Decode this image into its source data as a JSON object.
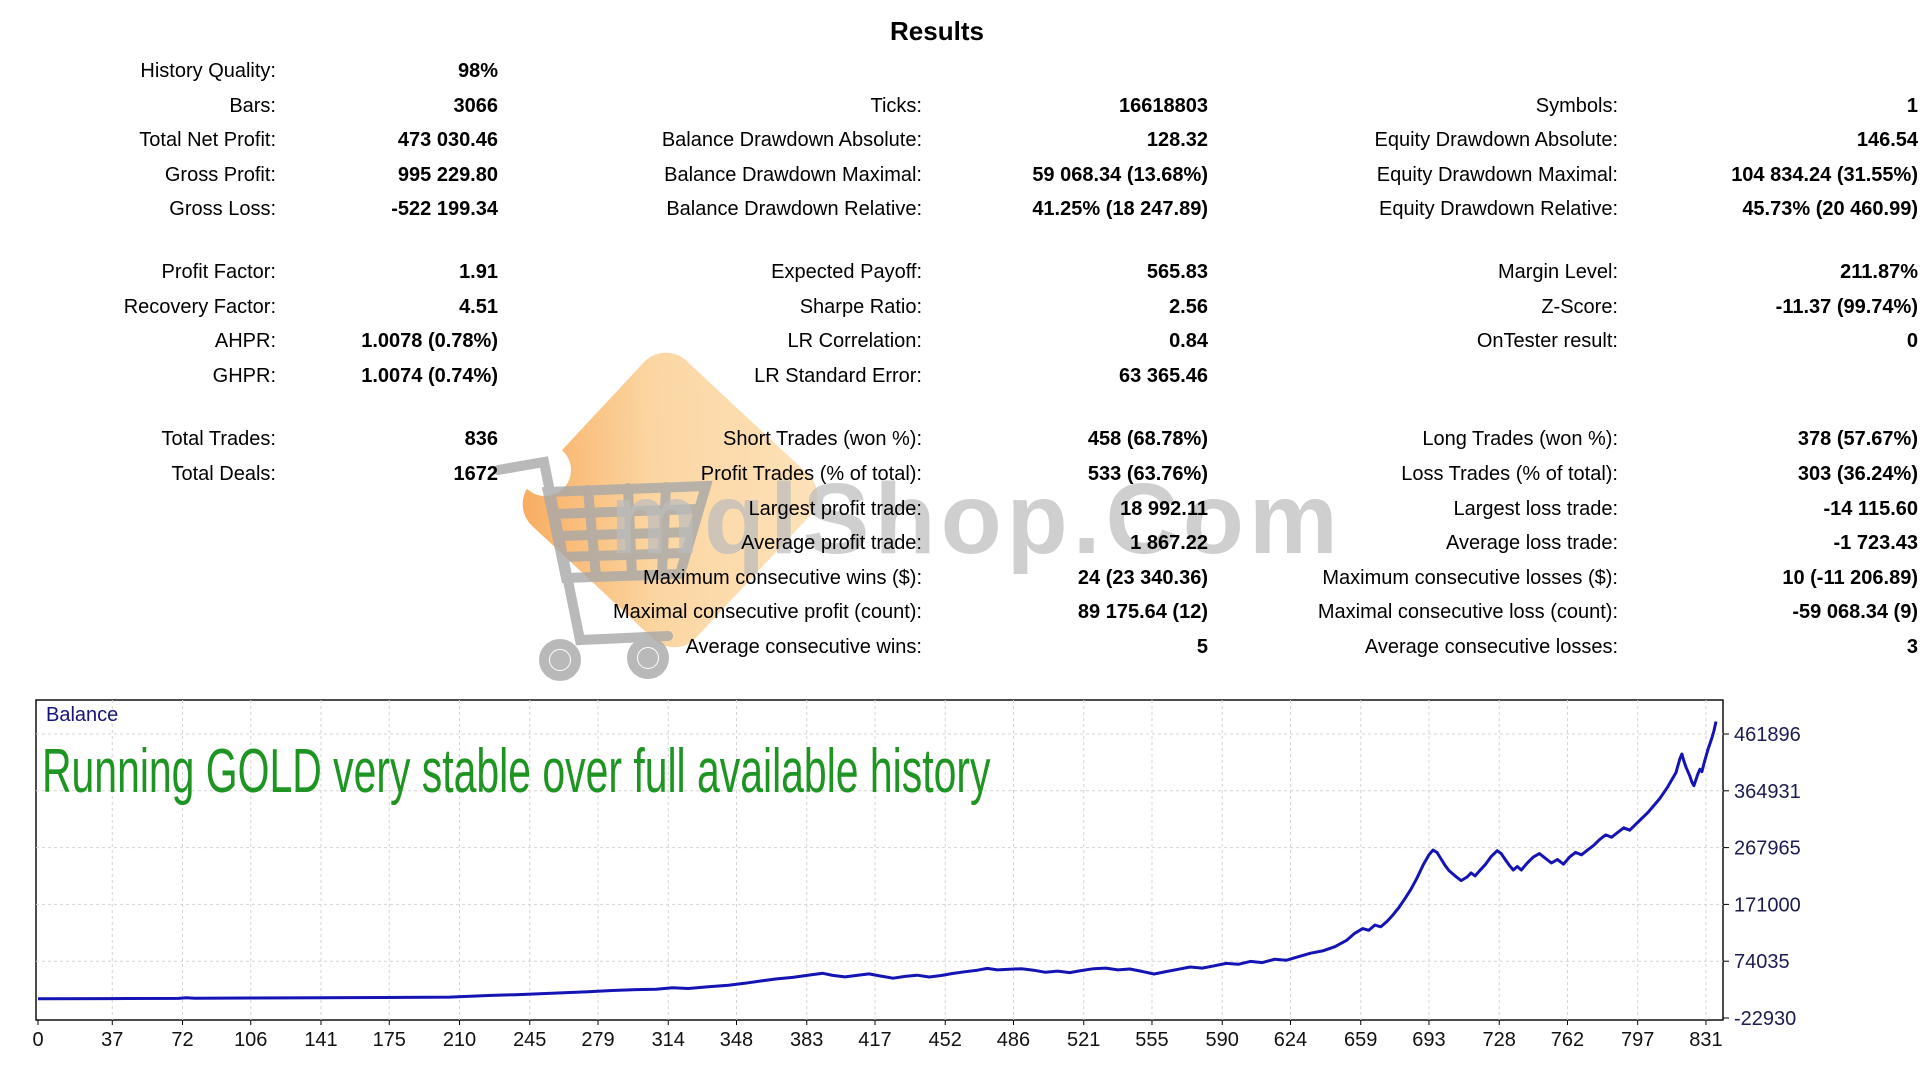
{
  "title": "Results",
  "watermark": {
    "text": "mqlShop.Com",
    "text_color": "#bdbdbd",
    "tag_color_light": "#fde2ba",
    "tag_color_dark": "#f8a95b",
    "cart_color": "#a8a8a8"
  },
  "stats": {
    "rows": [
      {
        "cells": [
          "History Quality:",
          "98%",
          "",
          "",
          "",
          ""
        ]
      },
      {
        "cells": [
          "Bars:",
          "3066",
          "Ticks:",
          "16618803",
          "Symbols:",
          "1"
        ]
      },
      {
        "cells": [
          "Total Net Profit:",
          "473 030.46",
          "Balance Drawdown Absolute:",
          "128.32",
          "Equity Drawdown Absolute:",
          "146.54"
        ]
      },
      {
        "cells": [
          "Gross Profit:",
          "995 229.80",
          "Balance Drawdown Maximal:",
          "59 068.34 (13.68%)",
          "Equity Drawdown Maximal:",
          "104 834.24 (31.55%)"
        ]
      },
      {
        "cells": [
          "Gross Loss:",
          "-522 199.34",
          "Balance Drawdown Relative:",
          "41.25% (18 247.89)",
          "Equity Drawdown Relative:",
          "45.73% (20 460.99)"
        ]
      },
      {
        "spacer": true,
        "h": 28
      },
      {
        "cells": [
          "Profit Factor:",
          "1.91",
          "Expected Payoff:",
          "565.83",
          "Margin Level:",
          "211.87%"
        ]
      },
      {
        "cells": [
          "Recovery Factor:",
          "4.51",
          "Sharpe Ratio:",
          "2.56",
          "Z-Score:",
          "-11.37 (99.74%)"
        ]
      },
      {
        "cells": [
          "AHPR:",
          "1.0078 (0.78%)",
          "LR Correlation:",
          "0.84",
          "OnTester result:",
          "0"
        ]
      },
      {
        "cells": [
          "GHPR:",
          "1.0074 (0.74%)",
          "LR Standard Error:",
          "63 365.46",
          "",
          ""
        ]
      },
      {
        "spacer": true,
        "h": 29
      },
      {
        "cells": [
          "Total Trades:",
          "836",
          "Short Trades (won %):",
          "458 (68.78%)",
          "Long Trades (won %):",
          "378 (57.67%)"
        ]
      },
      {
        "cells": [
          "Total Deals:",
          "1672",
          "Profit Trades (% of total):",
          "533 (63.76%)",
          "Loss Trades (% of total):",
          "303 (36.24%)"
        ]
      },
      {
        "cells": [
          "",
          "",
          "Largest profit trade:",
          "18 992.11",
          "Largest loss trade:",
          "-14 115.60"
        ]
      },
      {
        "cells": [
          "",
          "",
          "Average profit trade:",
          "1 867.22",
          "Average loss trade:",
          "-1 723.43"
        ]
      },
      {
        "cells": [
          "",
          "",
          "Maximum consecutive wins ($):",
          "24 (23 340.36)",
          "Maximum consecutive losses ($):",
          "10 (-11 206.89)"
        ]
      },
      {
        "cells": [
          "",
          "",
          "Maximal consecutive profit (count):",
          "89 175.64 (12)",
          "Maximal consecutive loss (count):",
          "-59 068.34 (9)"
        ]
      },
      {
        "cells": [
          "",
          "",
          "Average consecutive wins:",
          "5",
          "Average consecutive losses:",
          "3"
        ]
      }
    ]
  },
  "chart_data": {
    "type": "line",
    "annotation": "Running GOLD very stable over full available history",
    "x_ticks": [
      0,
      37,
      72,
      106,
      141,
      175,
      210,
      245,
      279,
      314,
      348,
      383,
      417,
      452,
      486,
      521,
      555,
      590,
      624,
      659,
      693,
      728,
      762,
      797,
      831
    ],
    "y_ticks": [
      461896,
      364931,
      267965,
      171000,
      74035,
      -22930
    ],
    "x_axis": {
      "min": 0,
      "max": 836
    },
    "y_axis": {
      "min": -22930,
      "max": 461896
    },
    "grid": "dashed",
    "legend_position": "top-left",
    "colors": {
      "line": "#1414b4",
      "grid": "#d4d4d4",
      "annotation": "#1e9422",
      "axis_text_y": "#1b1b52",
      "axis_text_x": "#111111",
      "series_label": "#15157a"
    },
    "series": [
      {
        "name": "Balance",
        "points": [
          [
            0,
            10000
          ],
          [
            35,
            10200
          ],
          [
            70,
            10600
          ],
          [
            74,
            11500
          ],
          [
            78,
            10900
          ],
          [
            105,
            11200
          ],
          [
            140,
            11600
          ],
          [
            172,
            12000
          ],
          [
            205,
            12700
          ],
          [
            214,
            14000
          ],
          [
            226,
            15600
          ],
          [
            238,
            16900
          ],
          [
            250,
            18300
          ],
          [
            262,
            20100
          ],
          [
            274,
            21900
          ],
          [
            286,
            24000
          ],
          [
            298,
            25500
          ],
          [
            308,
            26300
          ],
          [
            316,
            28700
          ],
          [
            324,
            27500
          ],
          [
            334,
            30300
          ],
          [
            344,
            33000
          ],
          [
            352,
            36300
          ],
          [
            360,
            40300
          ],
          [
            368,
            43800
          ],
          [
            376,
            46300
          ],
          [
            384,
            50300
          ],
          [
            391,
            53300
          ],
          [
            396,
            49800
          ],
          [
            402,
            47300
          ],
          [
            408,
            49800
          ],
          [
            414,
            52300
          ],
          [
            420,
            48600
          ],
          [
            426,
            45000
          ],
          [
            432,
            48100
          ],
          [
            438,
            50100
          ],
          [
            444,
            47100
          ],
          [
            450,
            49600
          ],
          [
            456,
            53200
          ],
          [
            462,
            56100
          ],
          [
            468,
            58600
          ],
          [
            473,
            61800
          ],
          [
            478,
            59100
          ],
          [
            484,
            60200
          ],
          [
            490,
            61300
          ],
          [
            496,
            58600
          ],
          [
            502,
            55100
          ],
          [
            508,
            57200
          ],
          [
            514,
            54600
          ],
          [
            520,
            58100
          ],
          [
            526,
            61200
          ],
          [
            532,
            62200
          ],
          [
            538,
            59200
          ],
          [
            544,
            60700
          ],
          [
            550,
            56700
          ],
          [
            556,
            52200
          ],
          [
            562,
            56200
          ],
          [
            568,
            60200
          ],
          [
            574,
            64200
          ],
          [
            580,
            62200
          ],
          [
            586,
            66200
          ],
          [
            592,
            70200
          ],
          [
            598,
            68700
          ],
          [
            604,
            73700
          ],
          [
            610,
            71700
          ],
          [
            616,
            77200
          ],
          [
            622,
            75700
          ],
          [
            628,
            81700
          ],
          [
            634,
            87700
          ],
          [
            640,
            91700
          ],
          [
            646,
            98700
          ],
          [
            652,
            109700
          ],
          [
            656,
            121700
          ],
          [
            660,
            129700
          ],
          [
            663,
            126700
          ],
          [
            666,
            135700
          ],
          [
            669,
            132700
          ],
          [
            672,
            141700
          ],
          [
            675,
            152700
          ],
          [
            678,
            165700
          ],
          [
            681,
            180700
          ],
          [
            684,
            196700
          ],
          [
            687,
            215700
          ],
          [
            690,
            237700
          ],
          [
            693,
            255700
          ],
          [
            695,
            263700
          ],
          [
            697,
            259700
          ],
          [
            699,
            248700
          ],
          [
            701,
            237700
          ],
          [
            703,
            228700
          ],
          [
            706,
            219700
          ],
          [
            709,
            211700
          ],
          [
            712,
            217700
          ],
          [
            714,
            224700
          ],
          [
            716,
            219700
          ],
          [
            718,
            227700
          ],
          [
            721,
            238700
          ],
          [
            724,
            252700
          ],
          [
            727,
            262700
          ],
          [
            729,
            257700
          ],
          [
            731,
            247700
          ],
          [
            733,
            237700
          ],
          [
            735,
            229700
          ],
          [
            737,
            235700
          ],
          [
            739,
            229700
          ],
          [
            742,
            241700
          ],
          [
            745,
            251700
          ],
          [
            748,
            257700
          ],
          [
            751,
            249700
          ],
          [
            754,
            241700
          ],
          [
            757,
            247700
          ],
          [
            760,
            239700
          ],
          [
            763,
            251700
          ],
          [
            766,
            259700
          ],
          [
            769,
            255700
          ],
          [
            772,
            263700
          ],
          [
            775,
            271700
          ],
          [
            778,
            281700
          ],
          [
            781,
            289700
          ],
          [
            784,
            285700
          ],
          [
            787,
            293700
          ],
          [
            790,
            301700
          ],
          [
            793,
            297700
          ],
          [
            796,
            307700
          ],
          [
            799,
            317700
          ],
          [
            802,
            327700
          ],
          [
            805,
            339700
          ],
          [
            808,
            351700
          ],
          [
            810,
            361700
          ],
          [
            812,
            371700
          ],
          [
            814,
            383700
          ],
          [
            816,
            395700
          ],
          [
            817,
            407700
          ],
          [
            818,
            419700
          ],
          [
            819,
            427700
          ],
          [
            820,
            415700
          ],
          [
            821,
            405700
          ],
          [
            822,
            397700
          ],
          [
            823,
            389700
          ],
          [
            824,
            379700
          ],
          [
            825,
            373700
          ],
          [
            826,
            383700
          ],
          [
            827,
            393700
          ],
          [
            828,
            401700
          ],
          [
            829,
            397700
          ],
          [
            830,
            411700
          ],
          [
            831,
            423700
          ],
          [
            832,
            435700
          ],
          [
            833,
            445700
          ],
          [
            834,
            455700
          ],
          [
            835,
            467700
          ],
          [
            836,
            483030
          ]
        ]
      }
    ]
  }
}
